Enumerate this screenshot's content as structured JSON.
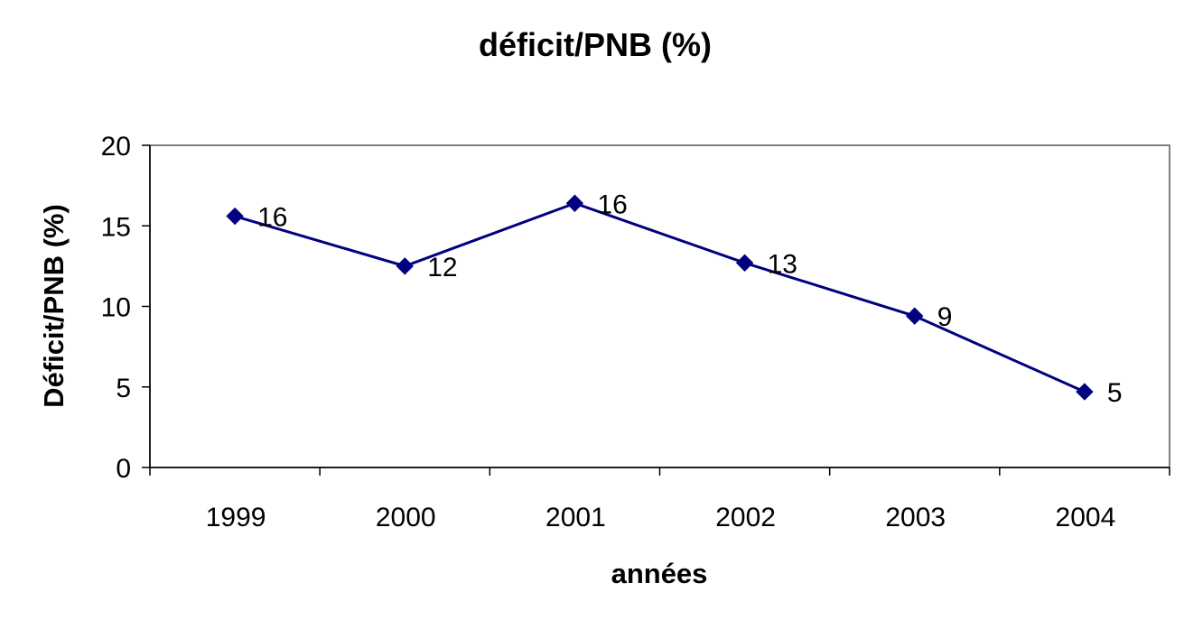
{
  "chart_data": {
    "type": "line",
    "title": "déficit/PNB (%)",
    "xlabel": "années",
    "ylabel": "Déficit/PNB (%)",
    "categories": [
      "1999",
      "2000",
      "2001",
      "2002",
      "2003",
      "2004"
    ],
    "series": [
      {
        "values": [
          15.6,
          12.5,
          16.4,
          12.7,
          9.4,
          4.7
        ],
        "data_labels": [
          "16",
          "12",
          "16",
          "13",
          "9",
          "5"
        ],
        "color": "#000080",
        "marker": "diamond"
      }
    ],
    "ylim": [
      0,
      20
    ],
    "yticks": [
      "0",
      "5",
      "10",
      "15",
      "20"
    ],
    "grid": false,
    "legend": "none",
    "plot_border_color": "#808080"
  }
}
